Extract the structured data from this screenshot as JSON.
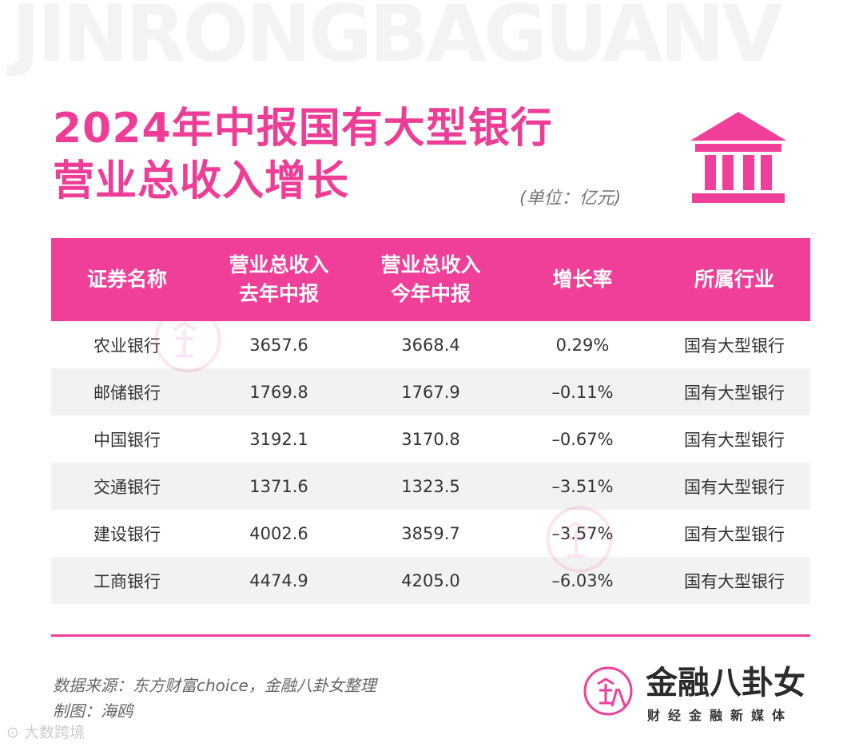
{
  "watermark_text": "JINRONGBAGUANV",
  "title": {
    "line1": "2024年中报国有大型银行",
    "line2": "营业总收入增长"
  },
  "unit": "(单位：亿元)",
  "icons": {
    "header": "bank-building-icon",
    "brand": "brand-logo-icon"
  },
  "colors": {
    "accent": "#ef3f98",
    "row_alt": "#f2f2f2"
  },
  "table": {
    "headers": [
      "证券名称",
      "营业总收入\n去年中报",
      "营业总收入\n今年中报",
      "增长率",
      "所属行业"
    ],
    "rows": [
      [
        "农业银行",
        "3657.6",
        "3668.4",
        "0.29%",
        "国有大型银行"
      ],
      [
        "邮储银行",
        "1769.8",
        "1767.9",
        "–0.11%",
        "国有大型银行"
      ],
      [
        "中国银行",
        "3192.1",
        "3170.8",
        "–0.67%",
        "国有大型银行"
      ],
      [
        "交通银行",
        "1371.6",
        "1323.5",
        "–3.51%",
        "国有大型银行"
      ],
      [
        "建设银行",
        "4002.6",
        "3859.7",
        "–3.57%",
        "国有大型银行"
      ],
      [
        "工商银行",
        "4474.9",
        "4205.0",
        "–6.03%",
        "国有大型银行"
      ]
    ]
  },
  "source": {
    "line1": "数据来源：东方财富choice，金融八卦女整理",
    "line2": "制图：海鸥"
  },
  "brand": {
    "name": "金融八卦女",
    "tagline": "财经金融新媒体"
  },
  "corner_mark": "大数跨境"
}
